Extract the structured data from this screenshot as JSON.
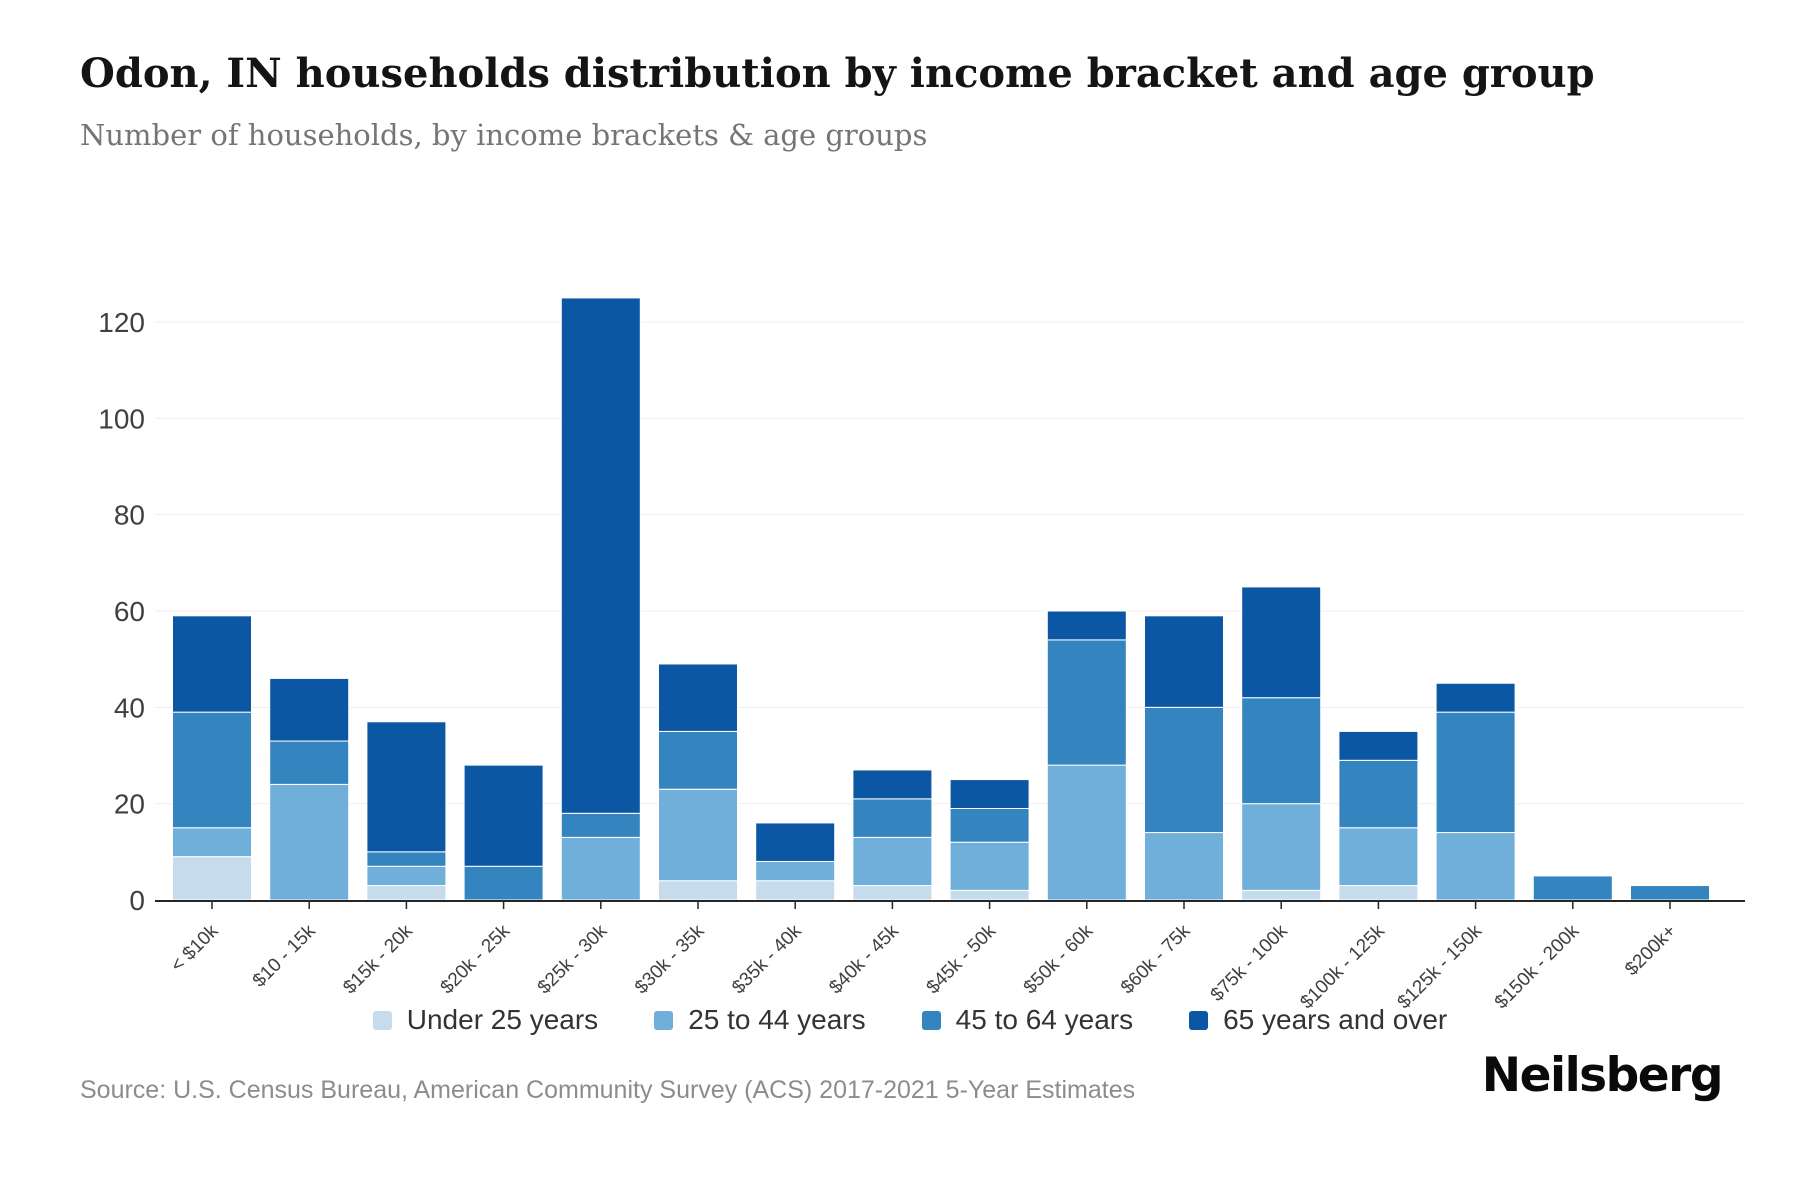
{
  "header": {
    "title": "Odon, IN households distribution by income bracket and age group",
    "subtitle": "Number of households, by income brackets & age groups"
  },
  "chart_data": {
    "type": "bar",
    "stacked": true,
    "title": "Odon, IN households distribution by income bracket and age group",
    "subtitle": "Number of households, by income brackets & age groups",
    "xlabel": "",
    "ylabel": "",
    "ylim": [
      0,
      120
    ],
    "yticks": [
      0,
      20,
      40,
      60,
      80,
      100,
      120
    ],
    "grid": true,
    "legend_position": "bottom",
    "categories": [
      "< $10k",
      "$10 - 15k",
      "$15k - 20k",
      "$20k - 25k",
      "$25k - 30k",
      "$30k - 35k",
      "$35k - 40k",
      "$40k - 45k",
      "$45k - 50k",
      "$50k - 60k",
      "$60k - 75k",
      "$75k - 100k",
      "$100k - 125k",
      "$125k - 150k",
      "$150k - 200k",
      "$200k+"
    ],
    "series": [
      {
        "name": "Under 25 years",
        "color": "#c6dbec",
        "values": [
          9,
          0,
          3,
          0,
          0,
          4,
          4,
          3,
          2,
          0,
          0,
          2,
          3,
          0,
          0,
          0
        ]
      },
      {
        "name": "25 to 44 years",
        "color": "#6fafd9",
        "values": [
          6,
          24,
          4,
          0,
          13,
          19,
          4,
          10,
          10,
          28,
          14,
          18,
          12,
          14,
          0,
          0
        ]
      },
      {
        "name": "45 to 64 years",
        "color": "#3484c0",
        "values": [
          24,
          9,
          3,
          7,
          5,
          12,
          0,
          8,
          7,
          26,
          26,
          22,
          14,
          25,
          5,
          3
        ]
      },
      {
        "name": "65 years and over",
        "color": "#0c57a4",
        "values": [
          20,
          13,
          27,
          21,
          107,
          14,
          8,
          6,
          6,
          6,
          19,
          23,
          6,
          6,
          0,
          0
        ]
      }
    ],
    "totals": [
      59,
      46,
      37,
      28,
      125,
      49,
      16,
      27,
      25,
      60,
      59,
      65,
      35,
      45,
      5,
      3
    ]
  },
  "footer": {
    "source": "Source: U.S. Census Bureau, American Community Survey (ACS) 2017-2021 5-Year Estimates",
    "logo": "Neilsberg"
  }
}
